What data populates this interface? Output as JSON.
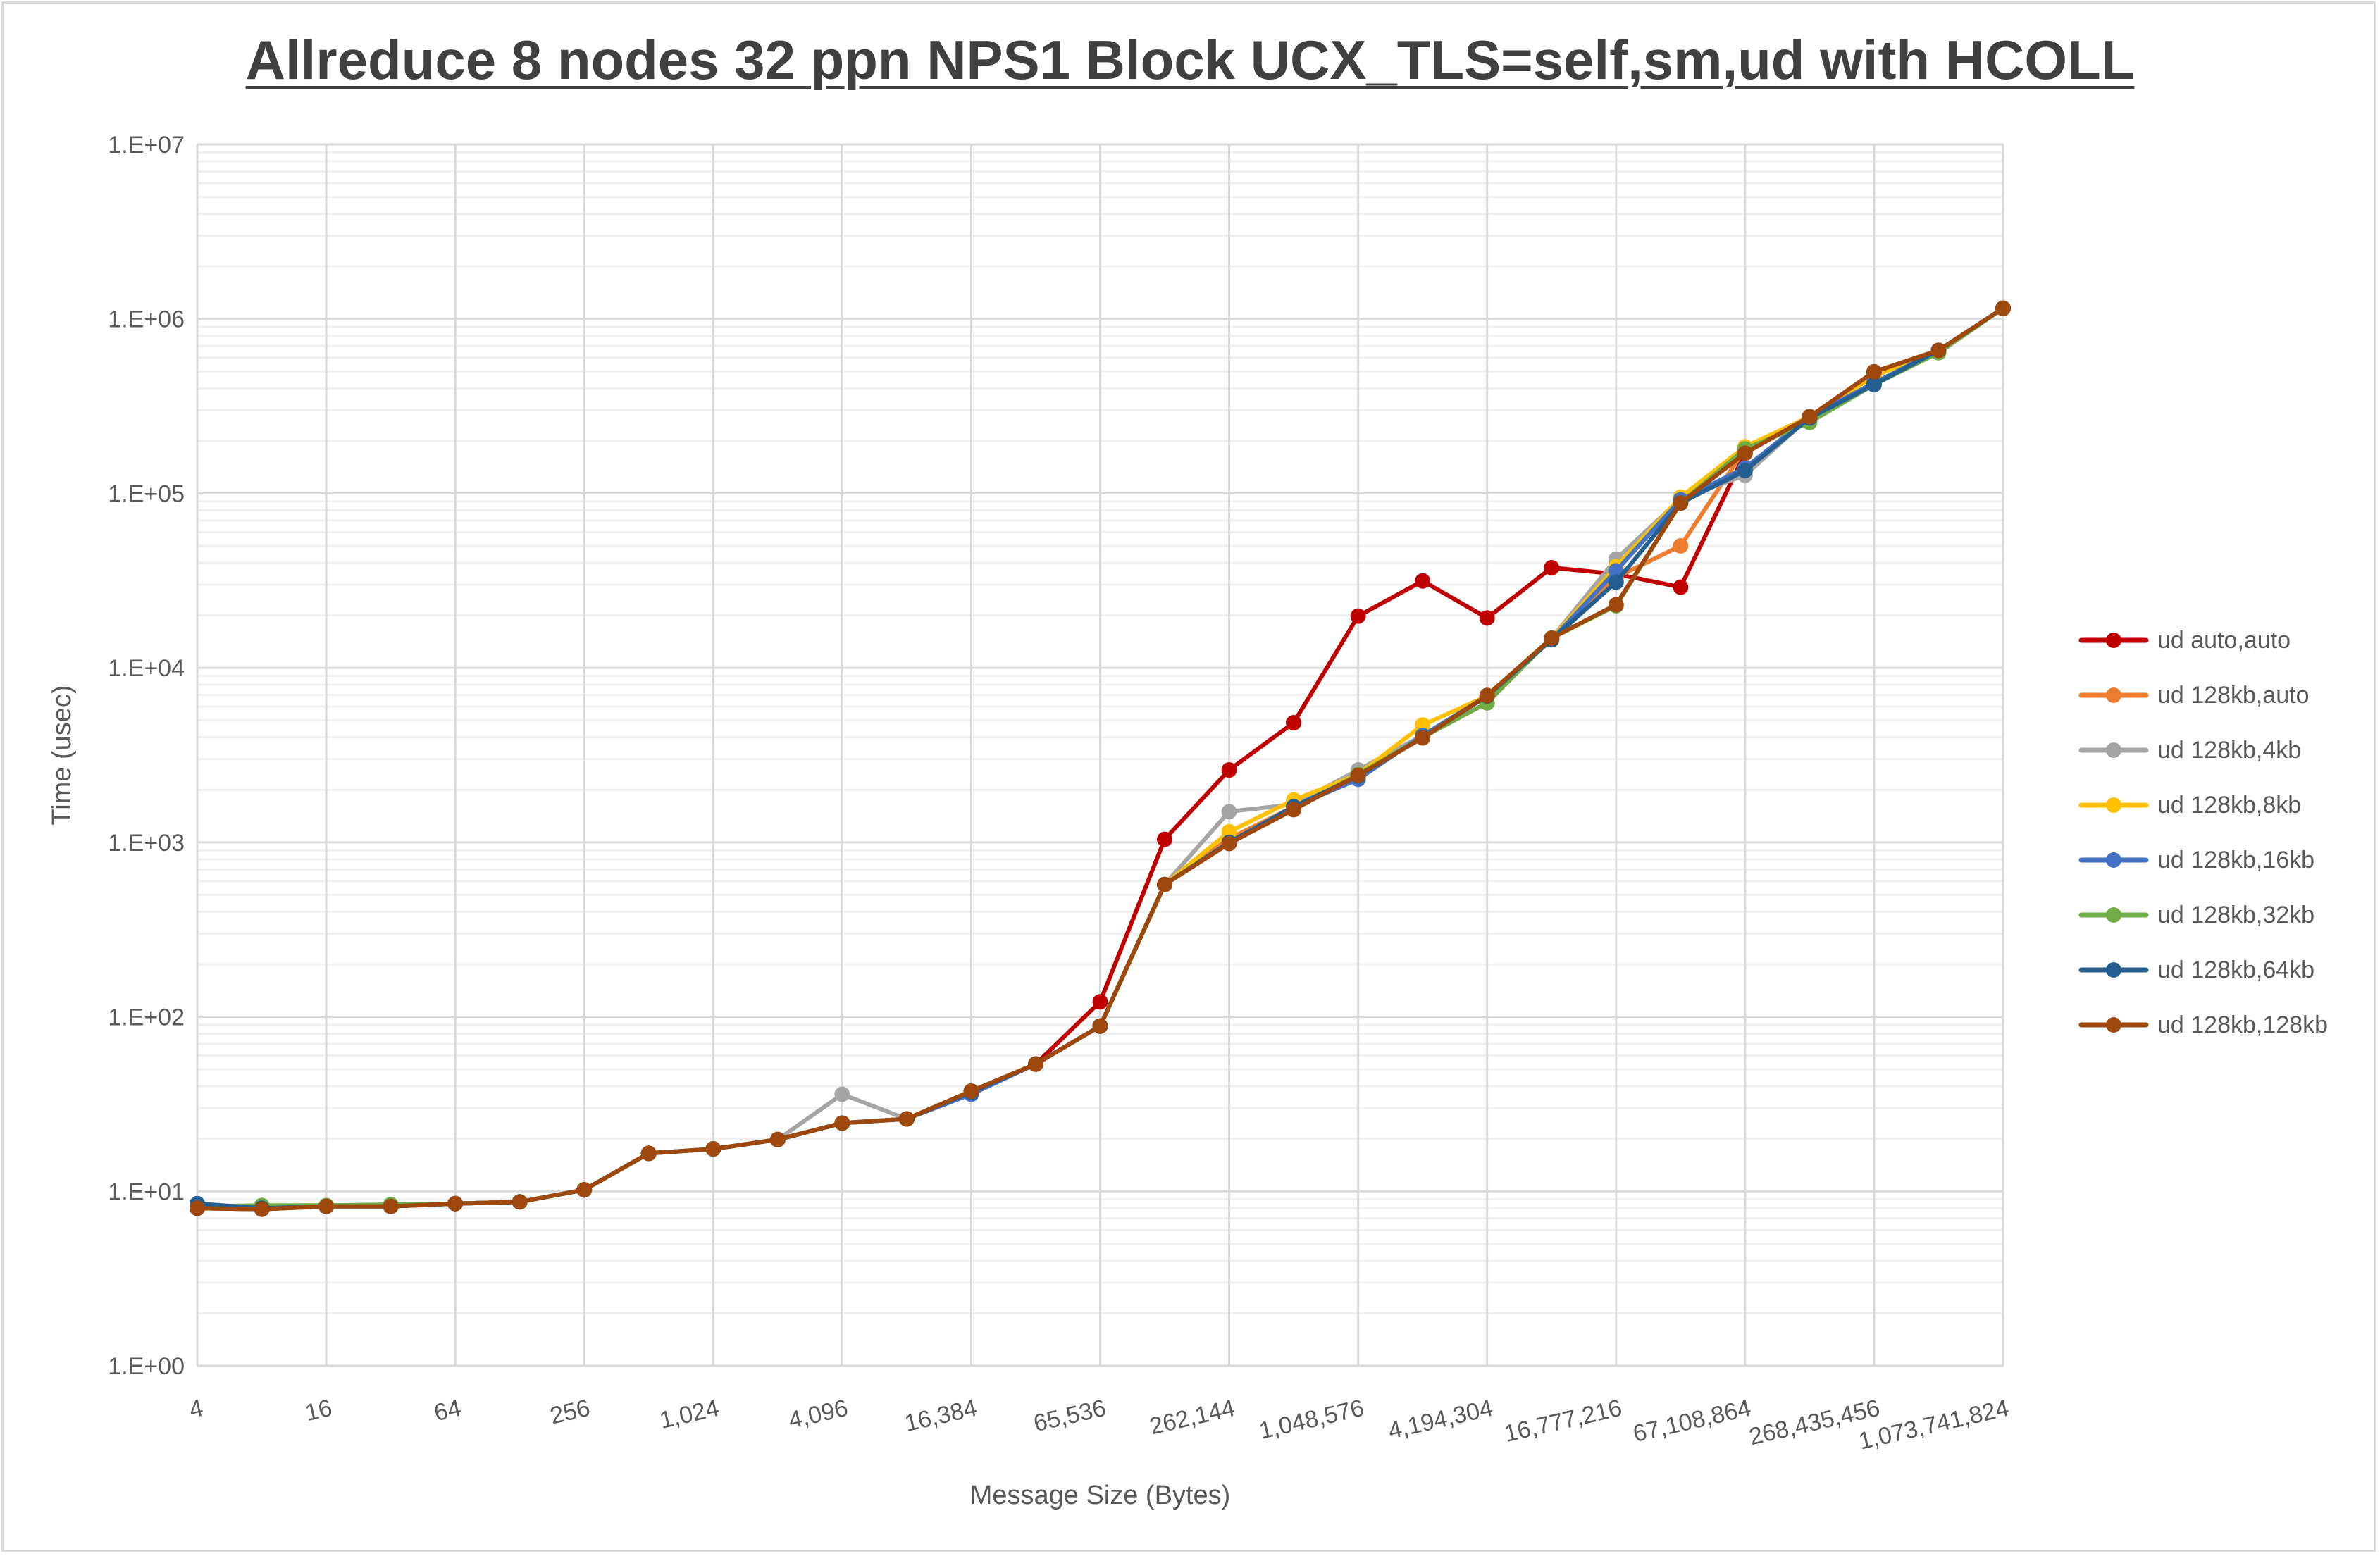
{
  "chart_data": {
    "type": "line",
    "title": "Allreduce 8 nodes 32 ppn NPS1 Block UCX_TLS=self,sm,ud with HCOLL",
    "xlabel": "Message Size (Bytes)",
    "ylabel": "Time (usec)",
    "x_scale": "log2",
    "y_scale": "log10",
    "ylim": [
      1,
      10000000
    ],
    "y_ticks": [
      "1.E+00",
      "1.E+01",
      "1.E+02",
      "1.E+03",
      "1.E+04",
      "1.E+05",
      "1.E+06",
      "1.E+07"
    ],
    "x_tick_labels": [
      "4",
      "16",
      "64",
      "256",
      "1,024",
      "4,096",
      "16,384",
      "65,536",
      "262,144",
      "1,048,576",
      "4,194,304",
      "16,777,216",
      "67,108,864",
      "268,435,456",
      "1,073,741,824"
    ],
    "x": [
      4,
      8,
      16,
      32,
      64,
      128,
      256,
      512,
      1024,
      2048,
      4096,
      8192,
      16384,
      32768,
      65536,
      131072,
      262144,
      524288,
      1048576,
      2097152,
      4194304,
      8388608,
      16777216,
      33554432,
      67108864,
      134217728,
      268435456,
      536870912,
      1073741824
    ],
    "grid": true,
    "legend_position": "right",
    "series": [
      {
        "name": "ud auto,auto",
        "color": "#c00000",
        "values": [
          8.0,
          7.9,
          8.2,
          8.2,
          8.5,
          8.7,
          10.2,
          16.5,
          17.5,
          19.8,
          24.6,
          26,
          37.5,
          53.6,
          122,
          1040,
          2600,
          4850,
          19800,
          31500,
          19300,
          37500,
          34500,
          29000,
          170000,
          275000,
          497000,
          660000,
          1150000
        ]
      },
      {
        "name": "ud 128kb,auto",
        "color": "#ed7d31",
        "values": [
          8.0,
          7.9,
          8.2,
          8.2,
          8.5,
          8.7,
          10.2,
          16.5,
          17.5,
          19.8,
          24.6,
          26,
          37.5,
          53.6,
          88.5,
          573,
          1050,
          1600,
          2450,
          4000,
          6900,
          14800,
          33000,
          50000,
          180000,
          270000,
          480000,
          660000,
          1150000
        ]
      },
      {
        "name": "ud 128kb,4kb",
        "color": "#a5a5a5",
        "values": [
          8.0,
          7.9,
          8.2,
          8.3,
          8.5,
          8.7,
          10.2,
          16.5,
          17.5,
          19.8,
          36,
          26,
          37.5,
          53.6,
          88.5,
          573,
          1500,
          1650,
          2600,
          4100,
          6900,
          14800,
          42000,
          93000,
          127000,
          275000,
          480000,
          660000,
          1150000
        ]
      },
      {
        "name": "ud 128kb,8kb",
        "color": "#ffc000",
        "values": [
          8.0,
          7.9,
          8.2,
          8.2,
          8.5,
          8.7,
          10.2,
          16.5,
          17.5,
          19.8,
          24.6,
          26,
          37.5,
          53.6,
          88.5,
          573,
          1150,
          1750,
          2450,
          4700,
          6900,
          14800,
          38000,
          95000,
          185000,
          275000,
          470000,
          660000,
          1150000
        ]
      },
      {
        "name": "ud 128kb,16kb",
        "color": "#4472c4",
        "values": [
          8.0,
          7.9,
          8.2,
          8.2,
          8.5,
          8.7,
          10.2,
          16.5,
          17.5,
          19.8,
          24.6,
          26,
          36,
          53.6,
          88.5,
          573,
          1000,
          1600,
          2300,
          4100,
          6900,
          14500,
          36000,
          92000,
          140000,
          275000,
          430000,
          660000,
          1150000
        ]
      },
      {
        "name": "ud 128kb,32kb",
        "color": "#70ad47",
        "values": [
          8.2,
          8.3,
          8.3,
          8.4,
          8.5,
          8.7,
          10.2,
          16.5,
          17.5,
          19.8,
          24.6,
          26,
          37.5,
          53.6,
          88.5,
          573,
          1000,
          1550,
          2450,
          4000,
          6300,
          14800,
          22700,
          88000,
          180000,
          255000,
          420000,
          640000,
          1150000
        ]
      },
      {
        "name": "ud 128kb,64kb",
        "color": "#255e91",
        "values": [
          8.5,
          8.0,
          8.2,
          8.2,
          8.5,
          8.7,
          10.2,
          16.5,
          17.5,
          19.8,
          24.6,
          26,
          37,
          53.6,
          88.5,
          573,
          1000,
          1600,
          2400,
          4000,
          6900,
          14500,
          31000,
          88000,
          135000,
          270000,
          420000,
          660000,
          1150000
        ]
      },
      {
        "name": "ud 128kb,128kb",
        "color": "#9e480e",
        "values": [
          8.0,
          7.9,
          8.2,
          8.2,
          8.5,
          8.7,
          10.2,
          16.5,
          17.5,
          19.8,
          24.6,
          26,
          37.5,
          53.6,
          88.5,
          573,
          985,
          1540,
          2420,
          3970,
          6950,
          14800,
          23000,
          88000,
          170000,
          275000,
          497000,
          660000,
          1150000
        ]
      }
    ]
  }
}
